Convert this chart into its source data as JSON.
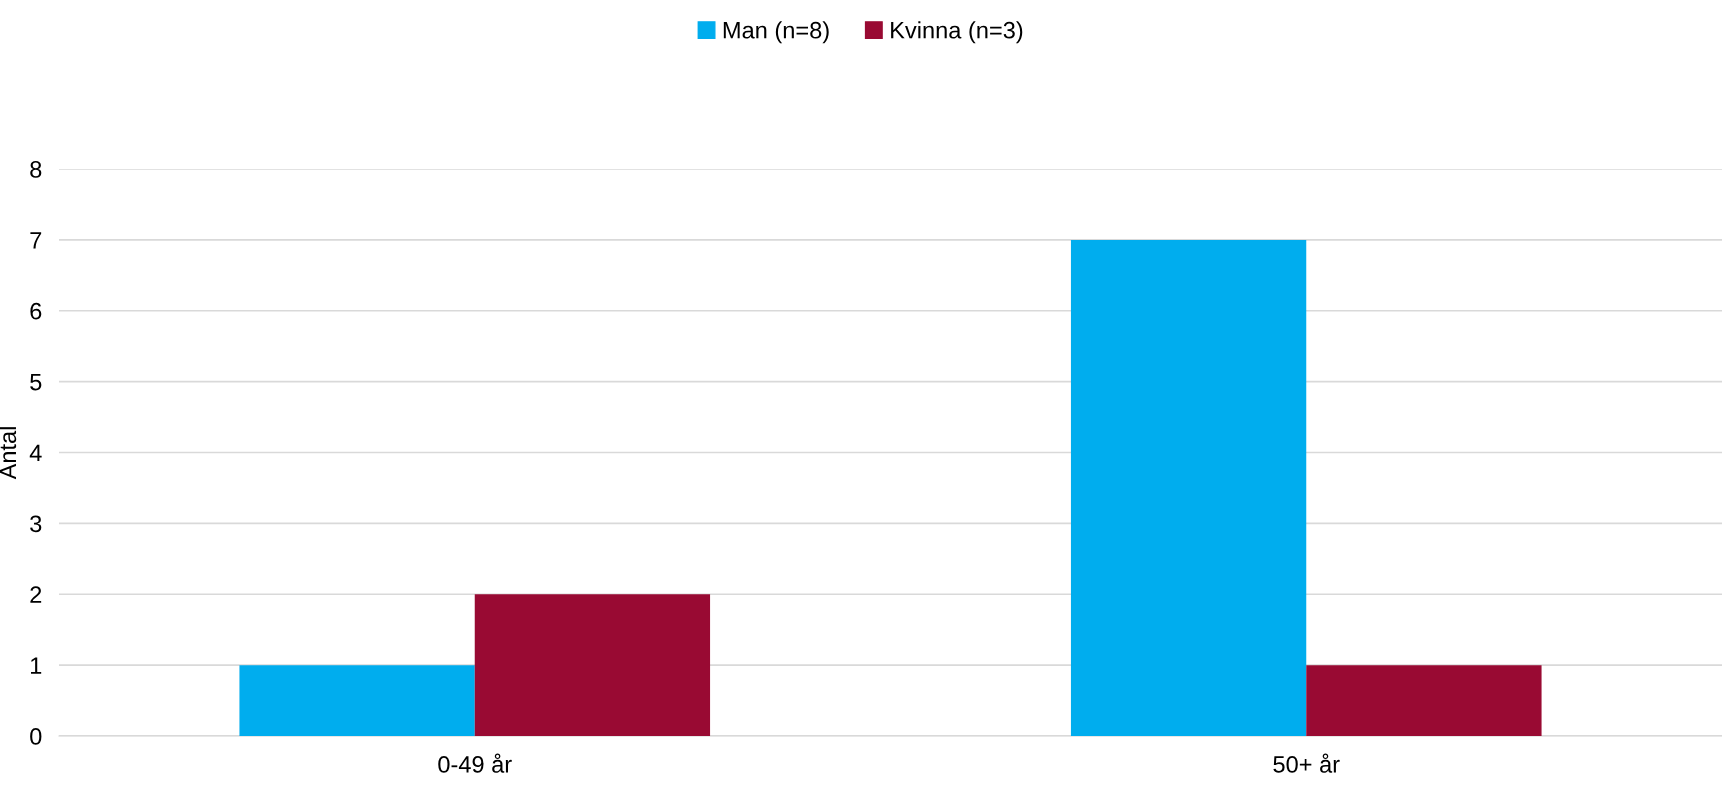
{
  "chart_data": {
    "type": "bar",
    "ylabel": "Antal",
    "categories": [
      "0-49 år",
      "50+ år"
    ],
    "series": [
      {
        "name": "Man (n=8)",
        "color": "#00adee",
        "values": [
          1,
          7
        ]
      },
      {
        "name": "Kvinna (n=3)",
        "color": "#990a33",
        "values": [
          2,
          1
        ]
      }
    ],
    "ylim": [
      0,
      8
    ],
    "yticks": [
      0,
      1,
      2,
      3,
      4,
      5,
      6,
      7,
      8
    ],
    "grid": "y",
    "legend": "top"
  }
}
